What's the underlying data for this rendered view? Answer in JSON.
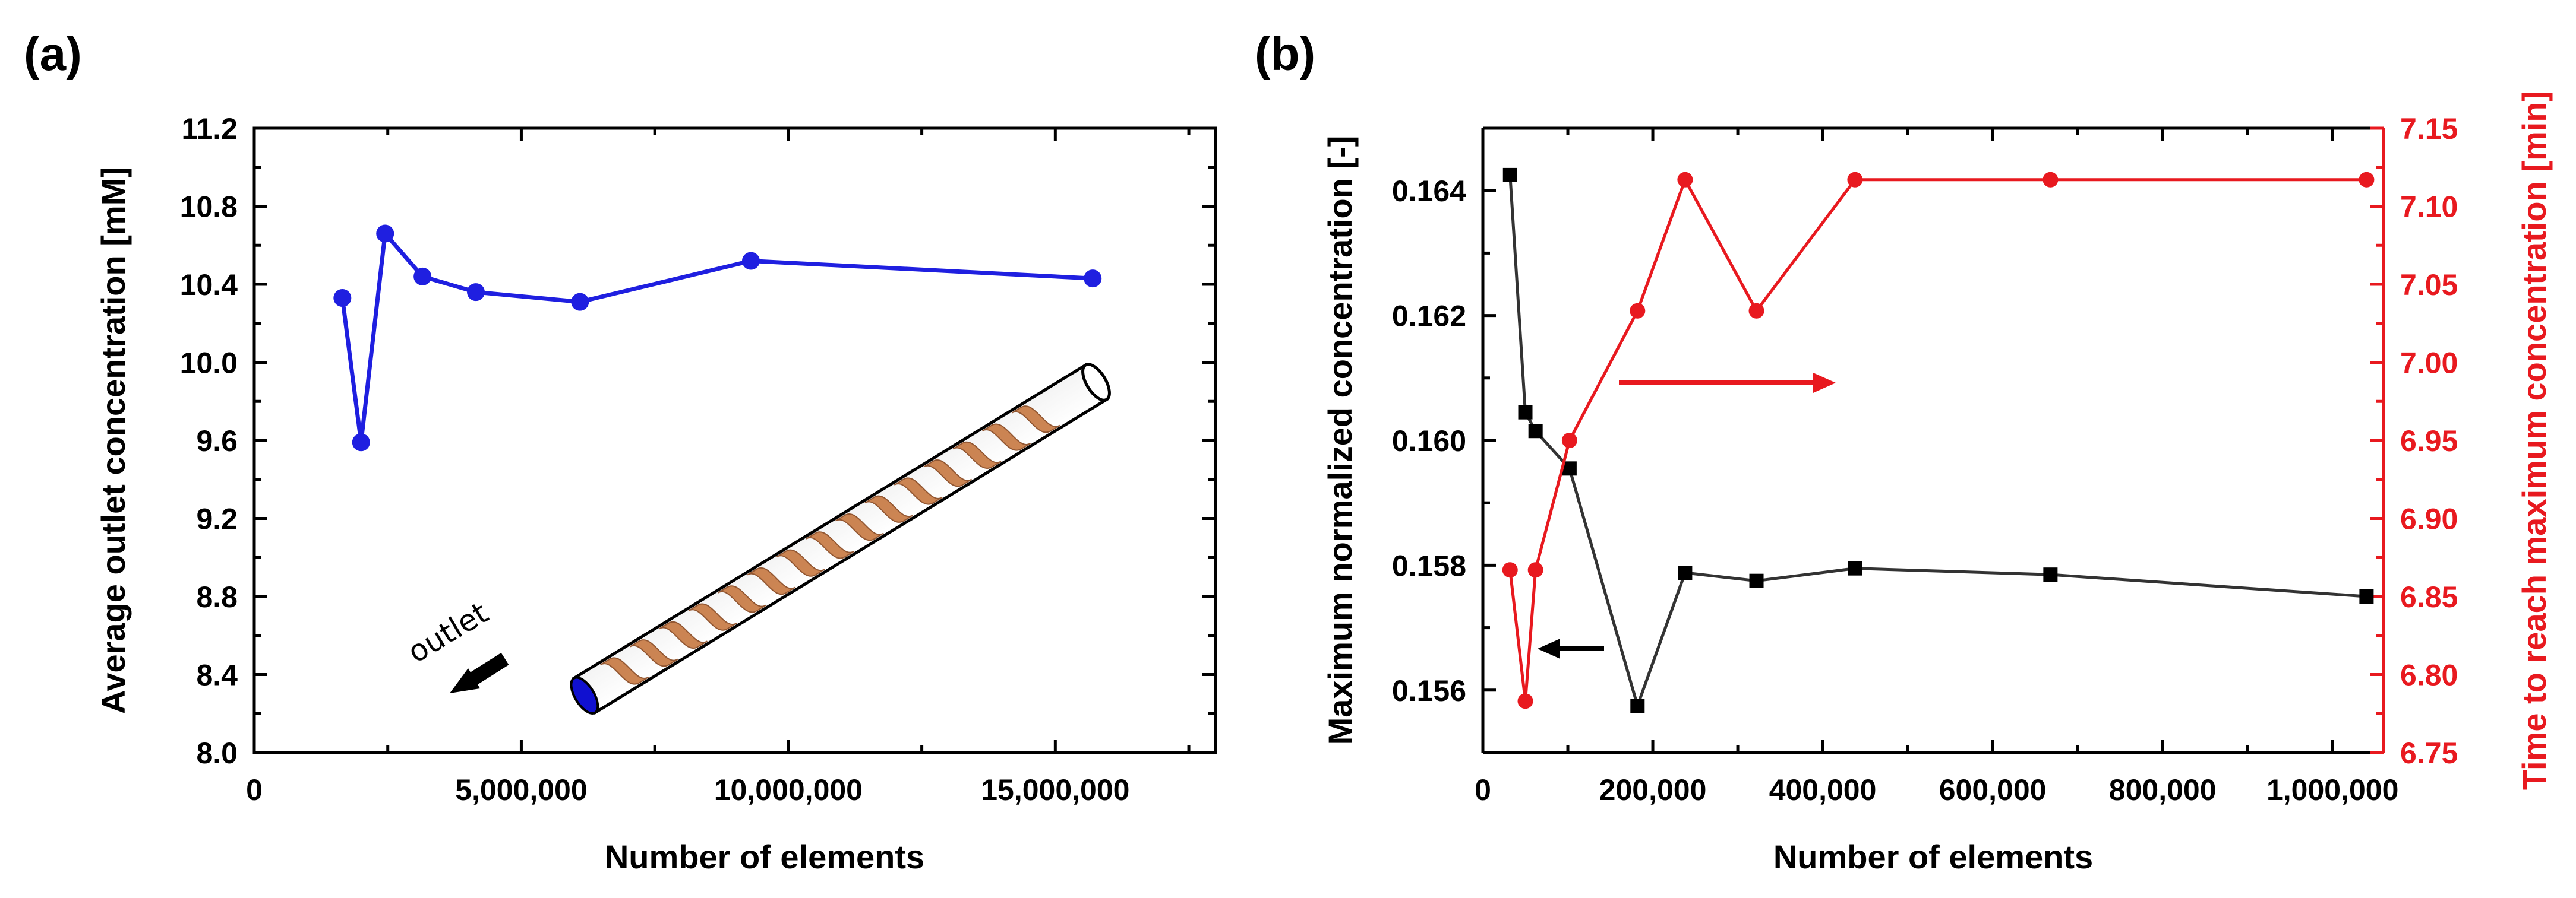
{
  "figure": {
    "labels": [
      "(a)",
      "(b)"
    ]
  },
  "chart_data": [
    {
      "type": "line",
      "panel_label": "(a)",
      "xlabel": "Number of elements",
      "ylabel": "Average outlet concentration [mM]",
      "xlim": [
        0,
        18000000
      ],
      "ylim": [
        8.0,
        11.2
      ],
      "x_ticks": [
        0,
        5000000,
        10000000,
        15000000
      ],
      "x_tick_labels": [
        "0",
        "5,000,000",
        "10,000,000",
        "15,000,000"
      ],
      "y_ticks": [
        8.0,
        8.4,
        8.8,
        9.2,
        9.6,
        10.0,
        10.4,
        10.8,
        11.2
      ],
      "y_tick_labels": [
        "8.0",
        "8.4",
        "8.8",
        "9.2",
        "9.6",
        "10.0",
        "10.4",
        "10.8",
        "11.2"
      ],
      "grid": false,
      "series": [
        {
          "color": "#1f1fe0",
          "marker": "circle",
          "x": [
            1650000,
            2000000,
            2450000,
            3150000,
            4150000,
            6100000,
            9300000,
            15700000
          ],
          "y": [
            10.33,
            9.59,
            10.66,
            10.44,
            10.36,
            10.31,
            10.52,
            10.43
          ]
        }
      ],
      "inset": {
        "text": "outlet",
        "description_icon": "pipe-with-helical-mixer-icon",
        "pipe_color": "#000000",
        "mixer_color": "#c87b45",
        "outlet_color": "#1010d0"
      }
    },
    {
      "type": "line",
      "panel_label": "(b)",
      "xlabel": "Number of elements",
      "ylabel": "Maximum normalized concentration [-]",
      "y2label": "Time to reach maximum concentration [min]",
      "xlim": [
        0,
        1060000
      ],
      "ylim": [
        0.155,
        0.165
      ],
      "y2lim": [
        6.75,
        7.15
      ],
      "x_ticks": [
        0,
        200000,
        400000,
        600000,
        800000,
        1000000
      ],
      "x_tick_labels": [
        "0",
        "200,000",
        "400,000",
        "600,000",
        "800,000",
        "1,000,000"
      ],
      "y_ticks": [
        0.156,
        0.158,
        0.16,
        0.162,
        0.164
      ],
      "y_tick_labels": [
        "0.156",
        "0.158",
        "0.160",
        "0.162",
        "0.164"
      ],
      "y2_ticks": [
        6.75,
        6.8,
        6.85,
        6.9,
        6.95,
        7.0,
        7.05,
        7.1,
        7.15
      ],
      "y2_tick_labels": [
        "6.75",
        "6.80",
        "6.85",
        "6.90",
        "6.95",
        "7.00",
        "7.05",
        "7.10",
        "7.15"
      ],
      "grid": false,
      "series": [
        {
          "axis": "left",
          "color": "#333333",
          "marker": "square",
          "x": [
            32000,
            50000,
            62000,
            102000,
            182000,
            238000,
            322000,
            438000,
            668000,
            1040000
          ],
          "y": [
            0.16425,
            0.16045,
            0.16015,
            0.15955,
            0.15575,
            0.15788,
            0.15775,
            0.15795,
            0.15785,
            0.1575
          ]
        },
        {
          "axis": "right",
          "color": "#e8191f",
          "marker": "circle",
          "x": [
            32000,
            50000,
            62000,
            102000,
            182000,
            238000,
            322000,
            438000,
            668000,
            1040000
          ],
          "y": [
            6.867,
            6.783,
            6.867,
            6.95,
            7.033,
            7.117,
            7.033,
            7.117,
            7.117,
            7.117
          ]
        }
      ],
      "arrows": [
        {
          "points_to": "right-axis",
          "color": "#e8191f"
        },
        {
          "points_to": "left-axis",
          "color": "#000000"
        }
      ]
    }
  ]
}
